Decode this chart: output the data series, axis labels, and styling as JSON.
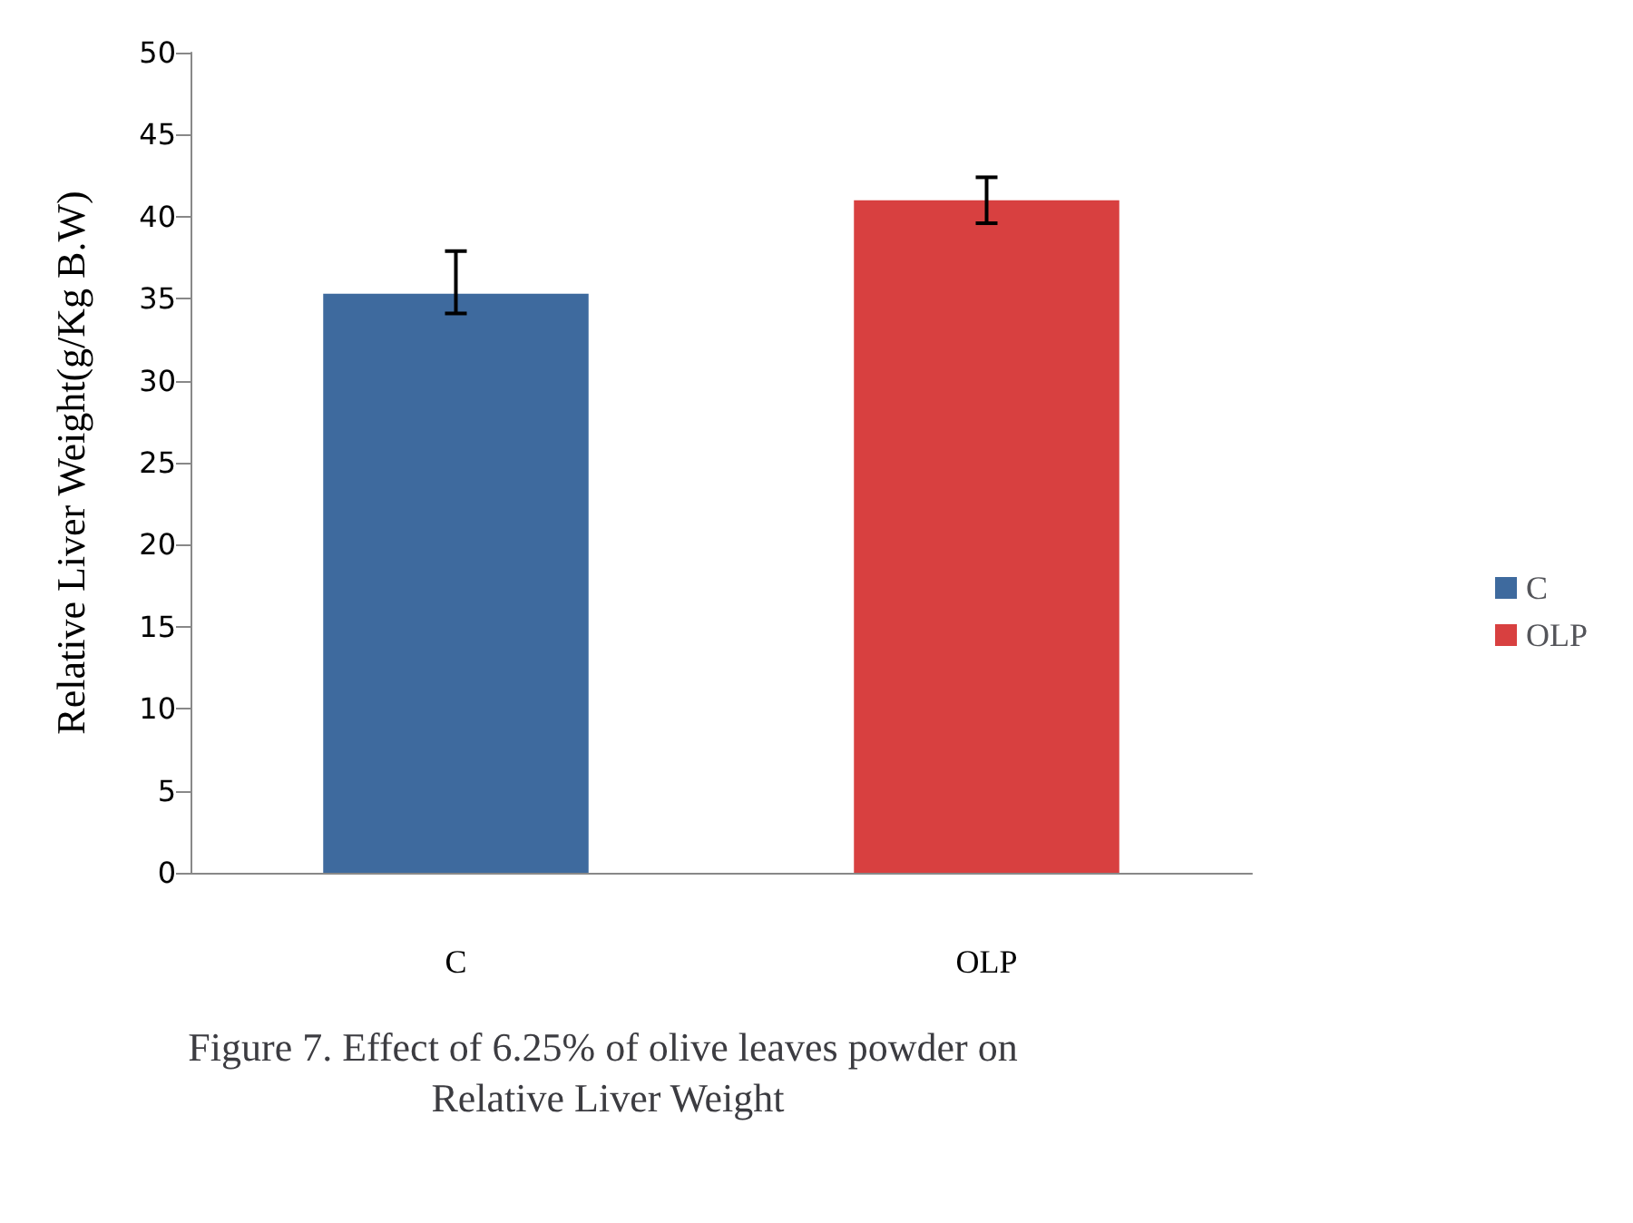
{
  "chart_data": {
    "type": "bar",
    "title": "Figure 7. Effect of 6.25% of olive leaves powder on Relative Liver Weight",
    "ylabel": "Relative Liver Weight(g/Kg B.W)",
    "categories": [
      "C",
      "OLP"
    ],
    "series": [
      {
        "name": "C",
        "color": "#3e6a9e",
        "values": [
          35.3,
          null
        ],
        "errors": [
          [
            34.1,
            37.9
          ],
          null
        ]
      },
      {
        "name": "OLP",
        "color": "#d84040",
        "values": [
          null,
          41.0
        ],
        "errors": [
          null,
          [
            39.6,
            42.4
          ]
        ]
      }
    ],
    "ylim": [
      0,
      50
    ],
    "yticks": [
      0,
      5,
      10,
      15,
      20,
      25,
      30,
      35,
      40,
      45,
      50
    ],
    "grid": false,
    "legend": "right"
  }
}
